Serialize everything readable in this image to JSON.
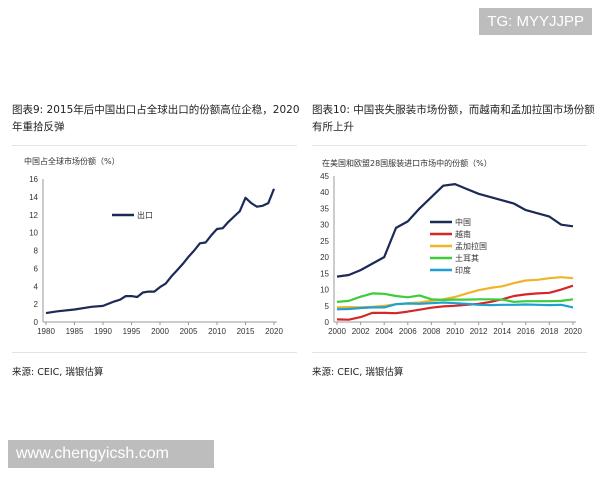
{
  "watermark_top": "TG: MYYJJPP",
  "watermark_bottom": "www.chengyicsh.com",
  "left": {
    "title": "图表9: 2015年后中国出口占全球出口的份额高位企稳，2020年重拾反弹",
    "source": "来源: CEIC, 瑞银估算"
  },
  "right": {
    "title": "图表10: 中国丧失服装市场份额，而越南和孟加拉国市场份额有所上升",
    "source": "来源: CEIC, 瑞银估算"
  },
  "chart_data": [
    {
      "type": "line",
      "ylabel": "中国占全球市场份额（%）",
      "ylim": [
        0,
        16
      ],
      "yticks": [
        0,
        2,
        4,
        6,
        8,
        10,
        12,
        14,
        16
      ],
      "xticks": [
        1980,
        1985,
        1990,
        1995,
        2000,
        2005,
        2010,
        2015,
        2020
      ],
      "xlim": [
        1980,
        2020
      ],
      "legend_placement": "center-left",
      "series": [
        {
          "name": "出口",
          "color": "#1b2a57",
          "x": [
            1980,
            1982,
            1985,
            1988,
            1990,
            1992,
            1993,
            1994,
            1995,
            1996,
            1997,
            1998,
            1999,
            2000,
            2001,
            2002,
            2003,
            2004,
            2005,
            2006,
            2007,
            2008,
            2009,
            2010,
            2011,
            2012,
            2013,
            2014,
            2015,
            2016,
            2017,
            2018,
            2019,
            2020
          ],
          "values": [
            1.0,
            1.2,
            1.4,
            1.7,
            1.8,
            2.3,
            2.5,
            2.9,
            2.9,
            2.8,
            3.3,
            3.4,
            3.4,
            3.9,
            4.3,
            5.1,
            5.8,
            6.5,
            7.3,
            8.0,
            8.8,
            8.9,
            9.7,
            10.4,
            10.5,
            11.2,
            11.8,
            12.4,
            13.9,
            13.3,
            12.9,
            13.0,
            13.3,
            14.9
          ]
        }
      ]
    },
    {
      "type": "line",
      "ylabel": "在美国和欧盟28国服装进口市场中的份额（%）",
      "ylim": [
        0,
        45
      ],
      "yticks": [
        0,
        5,
        10,
        15,
        20,
        25,
        30,
        35,
        40,
        45
      ],
      "xticks": [
        2000,
        2002,
        2004,
        2006,
        2008,
        2010,
        2012,
        2014,
        2016,
        2018,
        2020
      ],
      "xlim": [
        2000,
        2020
      ],
      "legend_placement": "center",
      "x": [
        2000,
        2001,
        2002,
        2003,
        2004,
        2005,
        2006,
        2007,
        2008,
        2009,
        2010,
        2011,
        2012,
        2013,
        2014,
        2015,
        2016,
        2017,
        2018,
        2019,
        2020
      ],
      "series": [
        {
          "name": "中国",
          "color": "#1b2a57",
          "values": [
            14,
            14.5,
            16,
            18,
            20,
            29,
            31,
            35,
            38.5,
            42,
            42.5,
            41,
            39.5,
            38.5,
            37.5,
            36.5,
            34.5,
            33.5,
            32.5,
            30,
            29.5
          ]
        },
        {
          "name": "越南",
          "color": "#d62728",
          "values": [
            0.8,
            0.7,
            1.5,
            2.8,
            2.8,
            2.7,
            3.2,
            3.8,
            4.4,
            4.8,
            5,
            5.3,
            5.6,
            6.2,
            7,
            8,
            8.5,
            8.8,
            9,
            10,
            11.2
          ]
        },
        {
          "name": "孟加拉国",
          "color": "#f0b428",
          "values": [
            4.5,
            4.6,
            4.5,
            4.7,
            5,
            5.5,
            5.8,
            6,
            6.5,
            7,
            7.7,
            8.8,
            9.8,
            10.5,
            11,
            12,
            12.8,
            13,
            13.5,
            13.8,
            13.5
          ]
        },
        {
          "name": "土耳其",
          "color": "#3ccc3c",
          "values": [
            6.2,
            6.5,
            7.8,
            8.8,
            8.7,
            8,
            7.6,
            8.2,
            7,
            6.8,
            6.9,
            6.9,
            7,
            7,
            6.9,
            6.2,
            6.4,
            6.4,
            6.4,
            6.5,
            7
          ]
        },
        {
          "name": "印度",
          "color": "#1ea0d0",
          "values": [
            3.9,
            4,
            4.3,
            4.5,
            4.5,
            5.5,
            5.7,
            5.6,
            5.8,
            6,
            5.8,
            5.6,
            5.3,
            5.2,
            5.3,
            5.3,
            5.4,
            5.3,
            5.2,
            5.3,
            4.5
          ]
        }
      ]
    }
  ]
}
